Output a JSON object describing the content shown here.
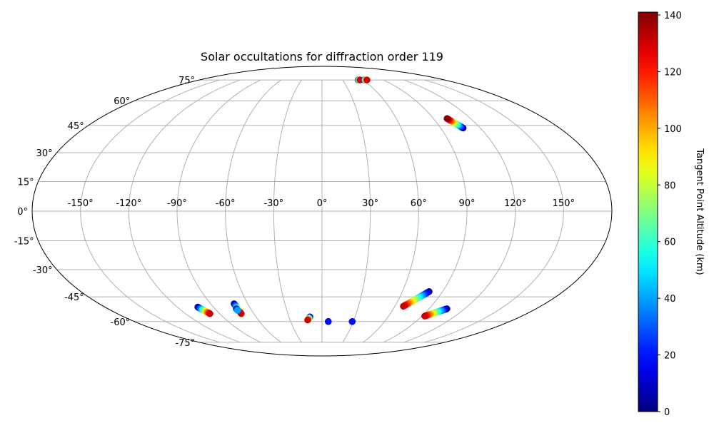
{
  "chart_data": {
    "type": "scatter",
    "projection": "mollweide",
    "title": "Solar occultations for diffraction order 119",
    "lon_ticks": [
      "-150°",
      "-120°",
      "-90°",
      "-60°",
      "-30°",
      "0°",
      "30°",
      "60°",
      "90°",
      "120°",
      "150°"
    ],
    "lat_ticks": [
      "75°",
      "60°",
      "45°",
      "30°",
      "15°",
      "0°",
      "-15°",
      "-30°",
      "-45°",
      "-60°",
      "-75°"
    ],
    "lon_values": [
      -150,
      -120,
      -90,
      -60,
      -30,
      0,
      30,
      60,
      90,
      120,
      150
    ],
    "lat_values": [
      75,
      60,
      45,
      30,
      15,
      0,
      -15,
      -30,
      -45,
      -60,
      -75
    ],
    "grid": true,
    "colorbar": {
      "label": "Tangent Point Altitude (km)",
      "ticks": [
        "0",
        "20",
        "40",
        "60",
        "80",
        "100",
        "120",
        "140"
      ],
      "tick_values": [
        0,
        20,
        40,
        60,
        80,
        100,
        120,
        140
      ],
      "vmin": 0,
      "vmax": 141,
      "colormap": "jet"
    },
    "tracks": [
      {
        "lon_start": 53,
        "lat_start": 75,
        "alt_start": 20,
        "lon_end": 56,
        "lat_end": 75,
        "alt_end": 130
      },
      {
        "lon_start": 62,
        "lat_start": 75,
        "alt_start": 20,
        "lon_end": 66,
        "lat_end": 75,
        "alt_end": 130
      },
      {
        "lon_start": 107,
        "lat_start": 43.5,
        "alt_start": 0,
        "lon_end": 101,
        "lat_end": 49,
        "alt_end": 140
      },
      {
        "lon_start": 80,
        "lat_start": -42,
        "alt_start": 0,
        "lon_end": 67,
        "lat_end": -50.5,
        "alt_end": 130
      },
      {
        "lon_start": 105,
        "lat_start": -52,
        "alt_start": 0,
        "lon_end": 92.5,
        "lat_end": -56.5,
        "alt_end": 130
      },
      {
        "lon_start": 29,
        "lat_start": -60,
        "alt_start": 0,
        "lon_end": 29,
        "lat_end": -60,
        "alt_end": 20
      },
      {
        "lon_start": 6,
        "lat_start": -60,
        "alt_start": 0,
        "lon_end": 6,
        "lat_end": -60,
        "alt_end": 20
      },
      {
        "lon_start": -11,
        "lat_start": -57,
        "alt_start": 0,
        "lon_end": -13.5,
        "lat_end": -59,
        "alt_end": 130
      },
      {
        "lon_start": -71,
        "lat_start": -49,
        "alt_start": 0,
        "lon_end": -71,
        "lat_end": -55,
        "alt_end": 130
      },
      {
        "lon_start": -72,
        "lat_start": -52,
        "alt_start": 0,
        "lon_end": -72,
        "lat_end": -53,
        "alt_end": 40
      },
      {
        "lon_start": -103,
        "lat_start": -51,
        "alt_start": 0,
        "lon_end": -98.5,
        "lat_end": -55,
        "alt_end": 130
      }
    ]
  }
}
